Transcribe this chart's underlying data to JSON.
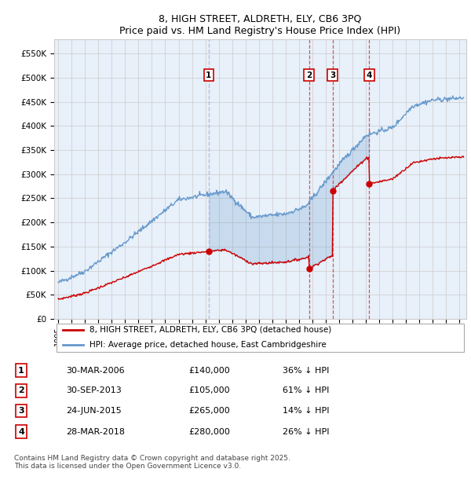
{
  "title1": "8, HIGH STREET, ALDRETH, ELY, CB6 3PQ",
  "title2": "Price paid vs. HM Land Registry's House Price Index (HPI)",
  "ylabel_ticks": [
    "£0",
    "£50K",
    "£100K",
    "£150K",
    "£200K",
    "£250K",
    "£300K",
    "£350K",
    "£400K",
    "£450K",
    "£500K",
    "£550K"
  ],
  "ytick_vals": [
    0,
    50000,
    100000,
    150000,
    200000,
    250000,
    300000,
    350000,
    400000,
    450000,
    500000,
    550000
  ],
  "ylim": [
    0,
    580000
  ],
  "xlim_start": 1994.7,
  "xlim_end": 2025.5,
  "transaction_color": "#cc0000",
  "hpi_color": "#6699cc",
  "hpi_fill_color": "#dce8f5",
  "vline1_color": "#aabbdd",
  "vline234_color": "#cc3333",
  "legend_label_property": "8, HIGH STREET, ALDRETH, ELY, CB6 3PQ (detached house)",
  "legend_label_hpi": "HPI: Average price, detached house, East Cambridgeshire",
  "transactions": [
    {
      "num": 1,
      "date_label": "30-MAR-2006",
      "date_x": 2006.25,
      "price": 140000,
      "hpi_pct": "36% ↓ HPI"
    },
    {
      "num": 2,
      "date_label": "30-SEP-2013",
      "date_x": 2013.75,
      "price": 105000,
      "hpi_pct": "61% ↓ HPI"
    },
    {
      "num": 3,
      "date_label": "24-JUN-2015",
      "date_x": 2015.5,
      "price": 265000,
      "hpi_pct": "14% ↓ HPI"
    },
    {
      "num": 4,
      "date_label": "28-MAR-2018",
      "date_x": 2018.25,
      "price": 280000,
      "hpi_pct": "26% ↓ HPI"
    }
  ],
  "footer": "Contains HM Land Registry data © Crown copyright and database right 2025.\nThis data is licensed under the Open Government Licence v3.0.",
  "background_color": "#e8f0fa",
  "plot_bg_color": "#ffffff",
  "grid_color": "#cccccc"
}
